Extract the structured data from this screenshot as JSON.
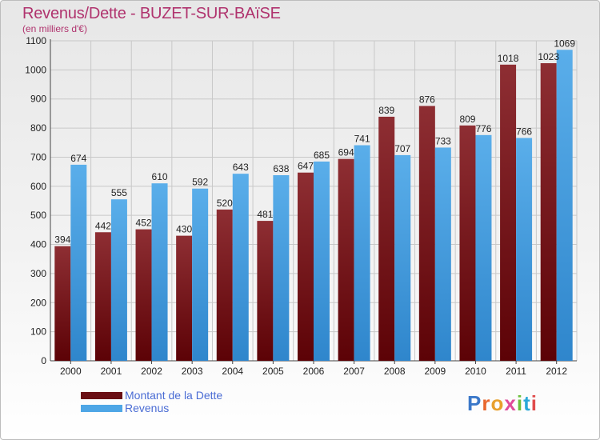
{
  "header": {
    "title": "Revenus/Dette - BUZET-SUR-BAïSE",
    "subtitle": "(en milliers d'€)"
  },
  "colors": {
    "title": "#b0336e",
    "dette": "#7a1c22",
    "revenus": "#4ea6e6",
    "legend_text": "#4a6cd4"
  },
  "legend": {
    "items": [
      {
        "label": "Montant de la Dette",
        "color": "#6a0f14"
      },
      {
        "label": "Revenus",
        "color": "#4ea6e6"
      }
    ]
  },
  "logo": {
    "text": "Proxiti"
  },
  "chart_data": {
    "type": "bar",
    "title": "Revenus/Dette - BUZET-SUR-BAïSE",
    "ylabel": "(en milliers d'€)",
    "xlabel": "",
    "categories": [
      "2000",
      "2001",
      "2002",
      "2003",
      "2004",
      "2005",
      "2006",
      "2007",
      "2008",
      "2009",
      "2010",
      "2011",
      "2012"
    ],
    "series": [
      {
        "name": "Montant de la Dette",
        "values": [
          394,
          442,
          452,
          430,
          520,
          481,
          647,
          694,
          839,
          876,
          809,
          1018,
          1023
        ],
        "labels": [
          "394",
          "442",
          "452",
          "430",
          "520",
          "481",
          "647",
          "694",
          "839",
          "876",
          "809",
          "1018",
          "1023"
        ]
      },
      {
        "name": "Revenus",
        "values": [
          674,
          555,
          610,
          592,
          643,
          638,
          685,
          741,
          707,
          733,
          776,
          766,
          1069
        ],
        "labels": [
          "674",
          "555",
          "610",
          "592",
          "643",
          "638",
          "685",
          "741",
          "707",
          "733",
          "776",
          "766",
          "1069"
        ]
      }
    ],
    "ylim": [
      0,
      1100
    ],
    "yticks": [
      0,
      100,
      200,
      300,
      400,
      500,
      600,
      700,
      800,
      900,
      1000,
      1100
    ],
    "grid": true,
    "legend_position": "bottom-left"
  }
}
